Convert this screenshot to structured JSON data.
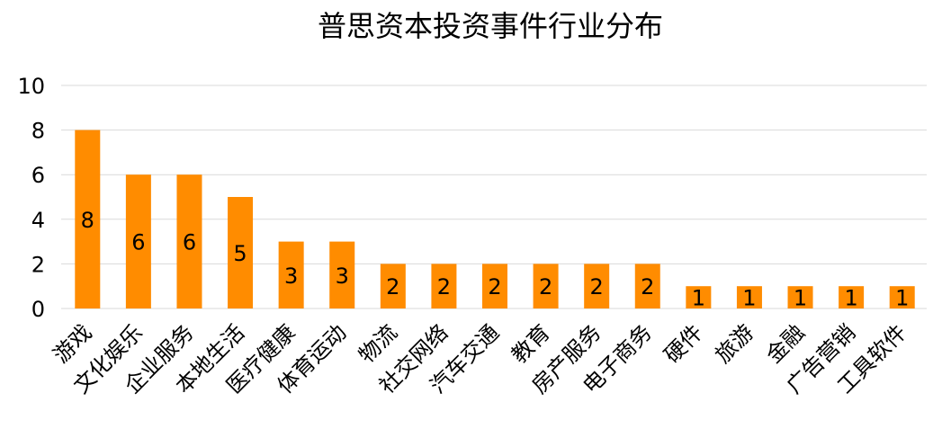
{
  "chart_data": {
    "type": "bar",
    "title": "普思资本投资事件行业分布",
    "xlabel": "",
    "ylabel": "",
    "ylim": [
      0,
      10
    ],
    "yticks": [
      0,
      2,
      4,
      6,
      8,
      10
    ],
    "grid": true,
    "legend": "none",
    "bar_color": "#FF8C00",
    "data_labels": true,
    "categories": [
      "游戏",
      "文化娱乐",
      "企业服务",
      "本地生活",
      "医疗健康",
      "体育运动",
      "物流",
      "社交网络",
      "汽车交通",
      "教育",
      "房产服务",
      "电子商务",
      "硬件",
      "旅游",
      "金融",
      "广告营销",
      "工具软件"
    ],
    "values": [
      8,
      6,
      6,
      5,
      3,
      3,
      2,
      2,
      2,
      2,
      2,
      2,
      1,
      1,
      1,
      1,
      1
    ]
  }
}
